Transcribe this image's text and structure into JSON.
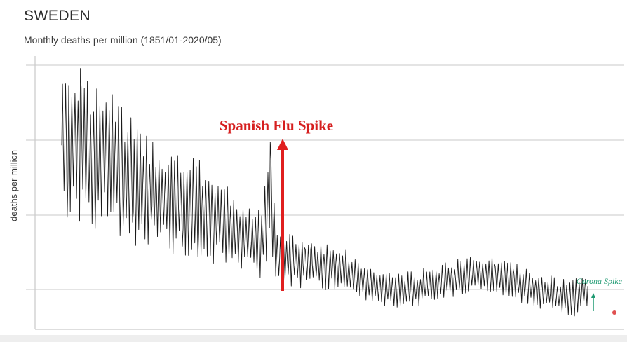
{
  "header": {
    "title": "SWEDEN",
    "subtitle": "Monthly deaths per million (1851/01-2020/05)"
  },
  "colors": {
    "gridline": "#c9c9c9",
    "series": "#1a1a1a",
    "flu_arrow": "#e01f1f",
    "corona_arrow": "#1f9a72"
  },
  "chart_data": {
    "type": "line",
    "title": "SWEDEN",
    "subtitle": "Monthly deaths per million (1851/01-2020/05)",
    "ylabel": "deaths per million",
    "xlabel": "",
    "x_range": [
      1851,
      2020
    ],
    "grid": true,
    "series": [
      {
        "values_description_x": "year (annual anchors; monthly oscillation drawn around trend)",
        "x": [
          1851,
          1855,
          1858,
          1860,
          1865,
          1870,
          1875,
          1880,
          1885,
          1890,
          1895,
          1900,
          1905,
          1910,
          1915,
          1918,
          1920,
          1925,
          1930,
          1935,
          1940,
          1945,
          1950,
          1955,
          1960,
          1965,
          1970,
          1975,
          1980,
          1985,
          1990,
          1995,
          2000,
          2005,
          2010,
          2015,
          2020
        ],
        "y": [
          1700,
          1750,
          1700,
          1600,
          1650,
          1550,
          1450,
          1400,
          1350,
          1320,
          1300,
          1250,
          1180,
          1120,
          1080,
          1400,
          1000,
          980,
          960,
          950,
          940,
          880,
          830,
          800,
          790,
          800,
          830,
          860,
          880,
          900,
          880,
          860,
          820,
          790,
          760,
          740,
          800
        ]
      }
    ],
    "annotations": [
      {
        "text": "Spanish Flu Spike",
        "x": 1918
      },
      {
        "text": "Corona Spike",
        "x": 2020
      }
    ]
  }
}
